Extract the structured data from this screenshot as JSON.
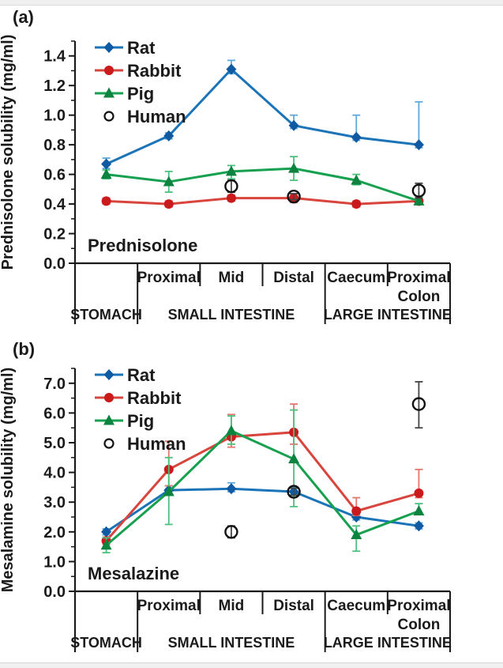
{
  "labels": {
    "panel_a": "(a)",
    "panel_b": "(b)"
  },
  "chart_data": [
    {
      "id": "a",
      "type": "line",
      "title": "",
      "xlabel": "",
      "ylabel": "Prednisolone solubility (mg/ml)",
      "drug_label": "Prednisolone",
      "ylim": [
        0,
        1.5
      ],
      "ytick_major": 0.2,
      "ytick_minor": 0.1,
      "grid": false,
      "legend_position": "upper-left-inside",
      "legend_entries": [
        "Rat",
        "Rabbit",
        "Pig",
        "Human"
      ],
      "categories": [
        "Stomach",
        "Proximal Small Intestine",
        "Mid Small Intestine",
        "Distal Small Intestine",
        "Caecum",
        "Proximal Colon"
      ],
      "x_axis": {
        "sub_labels": [
          [],
          [
            "Proximal"
          ],
          [
            "Mid"
          ],
          [
            "Distal"
          ],
          [
            "Caecum"
          ],
          [
            "Proximal",
            "Colon"
          ]
        ],
        "group_labels": [
          {
            "label": "STOMACH",
            "span": [
              0,
              1
            ]
          },
          {
            "label": "SMALL INTESTINE",
            "span": [
              1,
              4
            ]
          },
          {
            "label": "LARGE INTESTINE",
            "span": [
              4,
              6
            ]
          }
        ]
      },
      "series": [
        {
          "name": "Rat",
          "marker": "diamond",
          "color": "#1B74B8",
          "marker_color": "#0F5AA3",
          "err_color": "#5FA8DC",
          "values": [
            0.67,
            0.86,
            1.31,
            0.93,
            0.85,
            0.8
          ],
          "err_up": [
            0.04,
            0.02,
            0.06,
            0.07,
            0.15,
            0.29
          ],
          "err_down": [
            0.03,
            0.02,
            0.03,
            0.02,
            0.02,
            0.02
          ]
        },
        {
          "name": "Rabbit",
          "marker": "circle",
          "color": "#D8453C",
          "marker_color": "#CB1A1C",
          "err_color": "#E4766E",
          "values": [
            0.42,
            0.4,
            0.44,
            0.44,
            0.4,
            0.42
          ],
          "err_up": [
            0.02,
            0.02,
            0.02,
            0.03,
            0.02,
            0.02
          ],
          "err_down": [
            0.02,
            0.02,
            0.02,
            0.03,
            0.02,
            0.02
          ]
        },
        {
          "name": "Pig",
          "marker": "triangle",
          "color": "#17A04F",
          "marker_color": "#0C8440",
          "err_color": "#4CC07E",
          "values": [
            0.6,
            0.55,
            0.62,
            0.64,
            0.56,
            0.42
          ],
          "err_up": [
            0.03,
            0.07,
            0.04,
            0.08,
            0.04,
            0.03
          ],
          "err_down": [
            0.03,
            0.07,
            0.05,
            0.08,
            0.03,
            0.02
          ]
        },
        {
          "name": "Human",
          "marker": "open-circle",
          "line": false,
          "color": "#1a1a1a",
          "marker_color": "#1a1a1a",
          "err_color": "#444444",
          "values": [
            null,
            null,
            0.52,
            0.45,
            null,
            0.49
          ],
          "err_up": [
            null,
            null,
            0.04,
            0.02,
            null,
            0.05
          ],
          "err_down": [
            null,
            null,
            0.04,
            0.02,
            null,
            0.05
          ]
        }
      ]
    },
    {
      "id": "b",
      "type": "line",
      "title": "",
      "xlabel": "",
      "ylabel": "Mesalamine solubility (mg/ml)",
      "drug_label": "Mesalazine",
      "ylim": [
        0,
        7.5
      ],
      "ytick_major": 1.0,
      "ytick_minor": 0.5,
      "grid": false,
      "legend_position": "upper-left-inside",
      "legend_entries": [
        "Rat",
        "Rabbit",
        "Pig",
        "Human"
      ],
      "categories": [
        "Stomach",
        "Proximal Small Intestine",
        "Mid Small Intestine",
        "Distal Small Intestine",
        "Caecum",
        "Proximal Colon"
      ],
      "x_axis": {
        "sub_labels": [
          [],
          [
            "Proximal"
          ],
          [
            "Mid"
          ],
          [
            "Distal"
          ],
          [
            "Caecum"
          ],
          [
            "Proximal",
            "Colon"
          ]
        ],
        "group_labels": [
          {
            "label": "STOMACH",
            "span": [
              0,
              1
            ]
          },
          {
            "label": "SMALL INTESTINE",
            "span": [
              1,
              4
            ]
          },
          {
            "label": "LARGE INTESTINE",
            "span": [
              4,
              6
            ]
          }
        ]
      },
      "series": [
        {
          "name": "Rat",
          "marker": "diamond",
          "color": "#1B74B8",
          "marker_color": "#0F5AA3",
          "err_color": "#5FA8DC",
          "values": [
            2.0,
            3.4,
            3.45,
            3.35,
            2.5,
            2.2
          ],
          "err_up": [
            0.1,
            0.15,
            0.2,
            0.15,
            0.1,
            0.1
          ],
          "err_down": [
            0.1,
            0.1,
            0.1,
            0.1,
            0.1,
            0.1
          ]
        },
        {
          "name": "Rabbit",
          "marker": "circle",
          "color": "#D8453C",
          "marker_color": "#CB1A1C",
          "err_color": "#E4766E",
          "values": [
            1.7,
            4.1,
            5.2,
            5.35,
            2.7,
            3.3
          ],
          "err_up": [
            0.12,
            0.95,
            0.75,
            0.95,
            0.45,
            0.8
          ],
          "err_down": [
            0.12,
            0.55,
            0.35,
            0.4,
            0.15,
            0.15
          ]
        },
        {
          "name": "Pig",
          "marker": "triangle",
          "color": "#17A04F",
          "marker_color": "#0C8440",
          "err_color": "#4CC07E",
          "values": [
            1.55,
            3.35,
            5.4,
            4.45,
            1.9,
            2.7
          ],
          "err_up": [
            0.25,
            1.15,
            0.5,
            1.65,
            0.3,
            0.25
          ],
          "err_down": [
            0.25,
            1.1,
            0.45,
            1.6,
            0.55,
            0.12
          ]
        },
        {
          "name": "Human",
          "marker": "open-circle",
          "line": false,
          "color": "#1a1a1a",
          "marker_color": "#1a1a1a",
          "err_color": "#444444",
          "values": [
            null,
            null,
            2.0,
            3.35,
            null,
            6.3
          ],
          "err_up": [
            null,
            null,
            0.2,
            0.12,
            null,
            0.75
          ],
          "err_down": [
            null,
            null,
            0.2,
            0.12,
            null,
            0.8
          ]
        }
      ]
    }
  ]
}
